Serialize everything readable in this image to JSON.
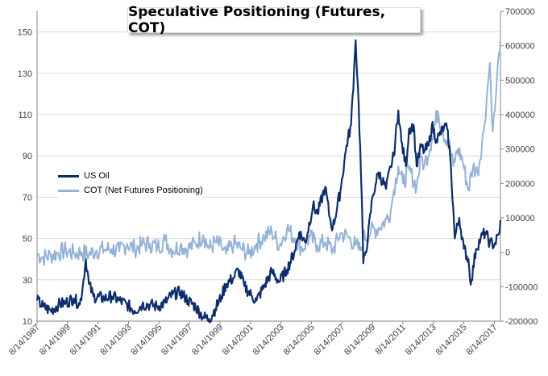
{
  "chart_data": {
    "type": "line",
    "title": "Speculative Positioning (Futures, COT)",
    "x_tick_labels": [
      "8/14/1987",
      "8/14/1989",
      "8/14/1991",
      "8/14/1993",
      "8/14/1995",
      "8/14/1997",
      "8/14/1999",
      "8/14/2001",
      "8/14/2003",
      "8/14/2005",
      "8/14/2007",
      "8/14/2009",
      "8/14/2011",
      "8/14/2013",
      "8/14/2015",
      "8/14/2017"
    ],
    "xlim": [
      1987.6,
      2018.0
    ],
    "left_axis": {
      "ylim": [
        10,
        160
      ],
      "ticks": [
        "10",
        "30",
        "50",
        "70",
        "90",
        "110",
        "130",
        "150"
      ]
    },
    "right_axis": {
      "ylim": [
        -200000,
        700000
      ],
      "ticks": [
        "-200000",
        "-100000",
        "0",
        "100000",
        "200000",
        "300000",
        "400000",
        "500000",
        "600000",
        "700000"
      ]
    },
    "legend_position": "left-middle",
    "grid": "horizontal",
    "series": [
      {
        "name": "US Oil",
        "axis": "left",
        "color": "#0d2d6b",
        "points": [
          [
            1987.6,
            20
          ],
          [
            1988.0,
            17
          ],
          [
            1988.5,
            15
          ],
          [
            1989.0,
            18
          ],
          [
            1989.5,
            19
          ],
          [
            1990.0,
            21
          ],
          [
            1990.4,
            18
          ],
          [
            1990.6,
            27
          ],
          [
            1990.8,
            40
          ],
          [
            1991.0,
            28
          ],
          [
            1991.3,
            22
          ],
          [
            1992.0,
            21
          ],
          [
            1992.5,
            22
          ],
          [
            1993.0,
            20
          ],
          [
            1993.5,
            18
          ],
          [
            1994.0,
            15
          ],
          [
            1994.5,
            18
          ],
          [
            1995.0,
            18
          ],
          [
            1995.5,
            17
          ],
          [
            1996.0,
            19
          ],
          [
            1996.5,
            23
          ],
          [
            1997.0,
            24
          ],
          [
            1997.5,
            20
          ],
          [
            1998.0,
            17
          ],
          [
            1998.5,
            12
          ],
          [
            1998.9,
            11
          ],
          [
            1999.3,
            16
          ],
          [
            1999.7,
            22
          ],
          [
            2000.0,
            28
          ],
          [
            2000.5,
            31
          ],
          [
            2000.8,
            35
          ],
          [
            2001.2,
            27
          ],
          [
            2001.7,
            22
          ],
          [
            2002.0,
            20
          ],
          [
            2002.5,
            27
          ],
          [
            2003.0,
            34
          ],
          [
            2003.5,
            29
          ],
          [
            2004.0,
            35
          ],
          [
            2004.5,
            44
          ],
          [
            2004.8,
            53
          ],
          [
            2005.2,
            48
          ],
          [
            2005.7,
            66
          ],
          [
            2006.0,
            62
          ],
          [
            2006.5,
            75
          ],
          [
            2006.8,
            60
          ],
          [
            2007.0,
            55
          ],
          [
            2007.5,
            73
          ],
          [
            2007.9,
            95
          ],
          [
            2008.2,
            105
          ],
          [
            2008.4,
            132
          ],
          [
            2008.5,
            146
          ],
          [
            2008.7,
            115
          ],
          [
            2008.9,
            70
          ],
          [
            2009.0,
            38
          ],
          [
            2009.1,
            42
          ],
          [
            2009.3,
            50
          ],
          [
            2009.6,
            70
          ],
          [
            2009.8,
            76
          ],
          [
            2010.0,
            82
          ],
          [
            2010.5,
            74
          ],
          [
            2010.8,
            85
          ],
          [
            2011.0,
            90
          ],
          [
            2011.3,
            112
          ],
          [
            2011.5,
            97
          ],
          [
            2011.8,
            85
          ],
          [
            2012.0,
            103
          ],
          [
            2012.3,
            105
          ],
          [
            2012.5,
            85
          ],
          [
            2012.8,
            95
          ],
          [
            2013.0,
            92
          ],
          [
            2013.3,
            95
          ],
          [
            2013.5,
            105
          ],
          [
            2013.8,
            98
          ],
          [
            2014.0,
            100
          ],
          [
            2014.3,
            104
          ],
          [
            2014.5,
            103
          ],
          [
            2014.7,
            90
          ],
          [
            2014.9,
            65
          ],
          [
            2015.0,
            50
          ],
          [
            2015.3,
            60
          ],
          [
            2015.6,
            45
          ],
          [
            2015.9,
            40
          ],
          [
            2016.0,
            30
          ],
          [
            2016.1,
            30
          ],
          [
            2016.4,
            45
          ],
          [
            2016.7,
            50
          ],
          [
            2017.0,
            53
          ],
          [
            2017.3,
            48
          ],
          [
            2017.6,
            47
          ],
          [
            2017.9,
            52
          ],
          [
            2018.0,
            59
          ]
        ]
      },
      {
        "name": "COT (Net Futures Positioning)",
        "axis": "right",
        "color": "#95b3d7",
        "points": [
          [
            1987.6,
            -5000
          ],
          [
            1988.0,
            -15000
          ],
          [
            1988.5,
            -8000
          ],
          [
            1989.0,
            -2000
          ],
          [
            1989.5,
            5000
          ],
          [
            1990.0,
            -3000
          ],
          [
            1990.5,
            0
          ],
          [
            1991.0,
            -5000
          ],
          [
            1991.5,
            5000
          ],
          [
            1992.0,
            8000
          ],
          [
            1992.5,
            10000
          ],
          [
            1993.0,
            3000
          ],
          [
            1993.5,
            25000
          ],
          [
            1994.0,
            10000
          ],
          [
            1994.5,
            22000
          ],
          [
            1995.0,
            25000
          ],
          [
            1995.5,
            15000
          ],
          [
            1996.0,
            35000
          ],
          [
            1996.5,
            5000
          ],
          [
            1997.0,
            20000
          ],
          [
            1997.5,
            10000
          ],
          [
            1998.0,
            25000
          ],
          [
            1998.5,
            50000
          ],
          [
            1998.9,
            10000
          ],
          [
            1999.3,
            30000
          ],
          [
            1999.7,
            15000
          ],
          [
            2000.0,
            -5000
          ],
          [
            2000.5,
            25000
          ],
          [
            2001.0,
            10000
          ],
          [
            2001.5,
            -5000
          ],
          [
            2002.0,
            25000
          ],
          [
            2002.5,
            45000
          ],
          [
            2003.0,
            60000
          ],
          [
            2003.5,
            20000
          ],
          [
            2004.0,
            70000
          ],
          [
            2004.5,
            40000
          ],
          [
            2005.0,
            10000
          ],
          [
            2005.5,
            45000
          ],
          [
            2006.0,
            20000
          ],
          [
            2006.5,
            30000
          ],
          [
            2007.0,
            5000
          ],
          [
            2007.5,
            55000
          ],
          [
            2008.0,
            45000
          ],
          [
            2008.5,
            20000
          ],
          [
            2008.8,
            5000
          ],
          [
            2009.0,
            40000
          ],
          [
            2009.5,
            60000
          ],
          [
            2010.0,
            70000
          ],
          [
            2010.5,
            95000
          ],
          [
            2010.8,
            120000
          ],
          [
            2011.0,
            180000
          ],
          [
            2011.3,
            250000
          ],
          [
            2011.6,
            200000
          ],
          [
            2012.0,
            240000
          ],
          [
            2012.5,
            190000
          ],
          [
            2012.8,
            280000
          ],
          [
            2013.0,
            250000
          ],
          [
            2013.5,
            330000
          ],
          [
            2013.9,
            410000
          ],
          [
            2014.2,
            350000
          ],
          [
            2014.6,
            320000
          ],
          [
            2014.9,
            250000
          ],
          [
            2015.2,
            300000
          ],
          [
            2015.5,
            270000
          ],
          [
            2015.9,
            180000
          ],
          [
            2016.2,
            250000
          ],
          [
            2016.5,
            230000
          ],
          [
            2016.9,
            350000
          ],
          [
            2017.1,
            450000
          ],
          [
            2017.3,
            550000
          ],
          [
            2017.5,
            350000
          ],
          [
            2017.7,
            450000
          ],
          [
            2017.9,
            580000
          ],
          [
            2018.0,
            615000
          ]
        ]
      }
    ]
  }
}
